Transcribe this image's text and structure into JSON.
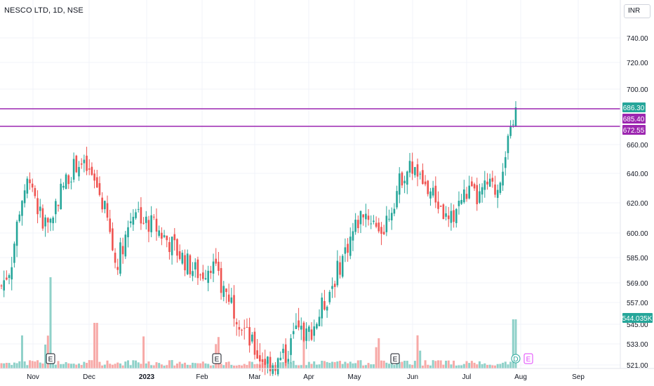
{
  "header": {
    "symbol": "NESCO LTD, 1D, NSE",
    "currency": "INR"
  },
  "colors": {
    "up": "#26a69a",
    "down": "#ef5350",
    "level": "#9c27b0",
    "volume_up": "#8fd1c9",
    "volume_down": "#f7a9a7",
    "grid": "#f0f3fa",
    "axis_text": "#131722"
  },
  "icons": [
    "earnings-marker",
    "dividend-marker"
  ],
  "chart_data": {
    "type": "candlestick",
    "title": "NESCO LTD, 1D, NSE",
    "price_axis": {
      "ticks": [
        "740.00",
        "720.00",
        "700.00",
        "660.00",
        "640.00",
        "620.00",
        "600.00",
        "585.00",
        "569.00",
        "557.00",
        "545.00",
        "533.00",
        "521.00"
      ],
      "scale": "log"
    },
    "time_axis": {
      "ticks": [
        "Nov",
        "Dec",
        "2023",
        "Feb",
        "Mar",
        "Apr",
        "May",
        "Jun",
        "Jul",
        "Aug",
        "Sep"
      ]
    },
    "price_labels": [
      {
        "value": "686.30",
        "color": "#26a69a"
      },
      {
        "value": "685.40",
        "color": "#9c27b0"
      },
      {
        "value": "672.55",
        "color": "#9c27b0"
      }
    ],
    "volume_label": "544.035K",
    "horizontal_levels": [
      685.4,
      672.55
    ],
    "events": [
      {
        "type": "earnings",
        "label": "E",
        "date": "Nov"
      },
      {
        "type": "earnings",
        "label": "E",
        "date": "Feb"
      },
      {
        "type": "earnings",
        "label": "E",
        "date": "May"
      },
      {
        "type": "dividend",
        "label": "D",
        "date": "Jul"
      },
      {
        "type": "earnings",
        "label": "E",
        "date": "Aug"
      }
    ],
    "close_series": [
      {
        "date": "Oct",
        "close": 567
      },
      {
        "date": "Nov",
        "close": 580
      },
      {
        "date": "Nov",
        "close": 620
      },
      {
        "date": "Nov",
        "close": 640
      },
      {
        "date": "Nov",
        "close": 612
      },
      {
        "date": "Nov",
        "close": 605
      },
      {
        "date": "Nov",
        "close": 625
      },
      {
        "date": "Dec",
        "close": 638
      },
      {
        "date": "Dec",
        "close": 648
      },
      {
        "date": "Dec",
        "close": 642
      },
      {
        "date": "Dec",
        "close": 632
      },
      {
        "date": "Dec",
        "close": 612
      },
      {
        "date": "Dec",
        "close": 580
      },
      {
        "date": "Dec",
        "close": 598
      },
      {
        "date": "Dec",
        "close": 618
      },
      {
        "date": "Dec",
        "close": 608
      },
      {
        "date": "2023",
        "close": 605
      },
      {
        "date": "2023",
        "close": 598
      },
      {
        "date": "2023",
        "close": 592
      },
      {
        "date": "Jan",
        "close": 585
      },
      {
        "date": "Jan",
        "close": 578
      },
      {
        "date": "Jan",
        "close": 574
      },
      {
        "date": "Feb",
        "close": 582
      },
      {
        "date": "Feb",
        "close": 568
      },
      {
        "date": "Feb",
        "close": 560
      },
      {
        "date": "Feb",
        "close": 548
      },
      {
        "date": "Mar",
        "close": 535
      },
      {
        "date": "Mar",
        "close": 526
      },
      {
        "date": "Mar",
        "close": 523
      },
      {
        "date": "Mar",
        "close": 522
      },
      {
        "date": "Apr",
        "close": 528
      },
      {
        "date": "Apr",
        "close": 542
      },
      {
        "date": "Apr",
        "close": 538
      },
      {
        "date": "Apr",
        "close": 546
      },
      {
        "date": "May",
        "close": 558
      },
      {
        "date": "May",
        "close": 572
      },
      {
        "date": "May",
        "close": 588
      },
      {
        "date": "May",
        "close": 602
      },
      {
        "date": "May",
        "close": 615
      },
      {
        "date": "May",
        "close": 608
      },
      {
        "date": "Jun",
        "close": 602
      },
      {
        "date": "Jun",
        "close": 618
      },
      {
        "date": "Jun",
        "close": 638
      },
      {
        "date": "Jun",
        "close": 645
      },
      {
        "date": "Jun",
        "close": 635
      },
      {
        "date": "Jun",
        "close": 628
      },
      {
        "date": "Jul",
        "close": 618
      },
      {
        "date": "Jul",
        "close": 605
      },
      {
        "date": "Jul",
        "close": 620
      },
      {
        "date": "Jul",
        "close": 628
      },
      {
        "date": "Jul",
        "close": 622
      },
      {
        "date": "Jul",
        "close": 632
      },
      {
        "date": "Jul",
        "close": 628
      },
      {
        "date": "Jul",
        "close": 658
      },
      {
        "date": "Aug",
        "close": 686.3
      }
    ]
  }
}
